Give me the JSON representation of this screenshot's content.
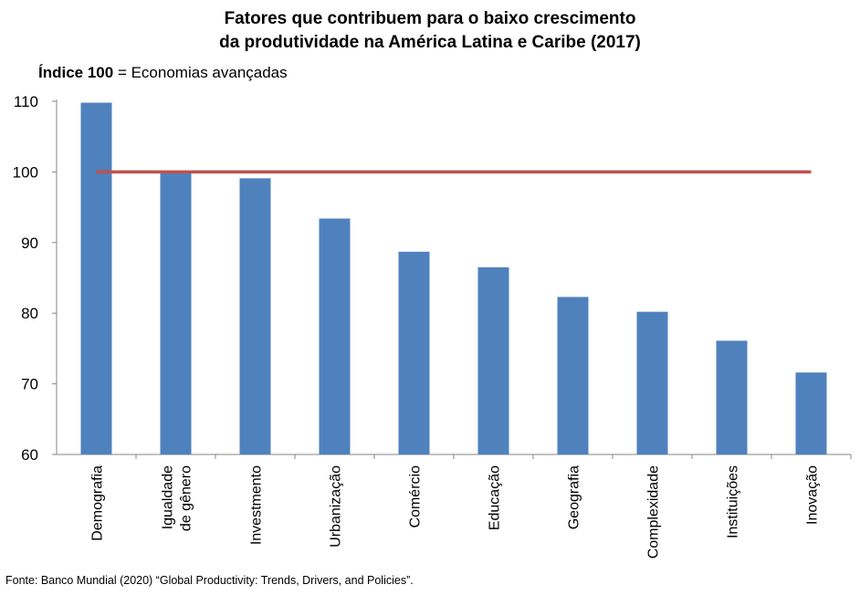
{
  "chart_data": {
    "type": "bar",
    "title_line1": "Fatores que contribuem para o baixo crescimento",
    "title_line2": "da produtividade na América Latina e Caribe (2017)",
    "subtitle_bold": "Índice 100",
    "subtitle_rest": " = Economias avançadas",
    "categories": [
      [
        "Demografia"
      ],
      [
        "Igualdade",
        "de gênero"
      ],
      [
        "Investmento"
      ],
      [
        "Urbanização"
      ],
      [
        "Comércio"
      ],
      [
        "Educação"
      ],
      [
        "Geografia"
      ],
      [
        "Complexidade"
      ],
      [
        "Instituições"
      ],
      [
        "Inovação"
      ]
    ],
    "values": [
      109.8,
      100,
      99.1,
      93.4,
      88.7,
      86.5,
      82.3,
      80.2,
      76.1,
      71.6
    ],
    "reference_line": 100,
    "ylim": [
      60,
      110
    ],
    "yticks": [
      "60",
      "70",
      "80",
      "90",
      "100",
      "110"
    ],
    "bar_color": "#4f81bd",
    "line_color": "#c0504d",
    "grid": false,
    "source": "Fonte: Banco Mundial (2020) “Global Productivity: Trends, Drivers, and Policies”."
  }
}
